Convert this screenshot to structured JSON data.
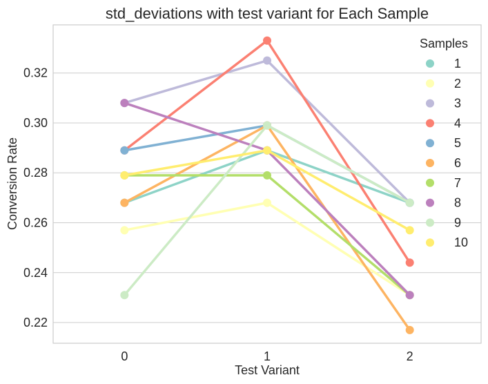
{
  "chart_data": {
    "type": "line",
    "title": "std_deviations with test variant for Each Sample",
    "xlabel": "Test Variant",
    "ylabel": "Conversion Rate",
    "x": [
      0,
      1,
      2
    ],
    "x_tick_labels": [
      "0",
      "1",
      "2"
    ],
    "y_ticks": [
      0.22,
      0.24,
      0.26,
      0.28,
      0.3,
      0.32
    ],
    "y_tick_labels": [
      "0.22",
      "0.24",
      "0.26",
      "0.28",
      "0.30",
      "0.32"
    ],
    "ylim": [
      0.2117,
      0.3393
    ],
    "xlim": [
      -0.5,
      2.5
    ],
    "grid": "horizontal",
    "legend": {
      "title": "Samples",
      "position": "top-right"
    },
    "series": [
      {
        "name": "1",
        "color": "#8dd3c7",
        "values": [
          0.268,
          0.289,
          0.268
        ]
      },
      {
        "name": "2",
        "color": "#ffffb3",
        "values": [
          0.257,
          0.268,
          0.231
        ]
      },
      {
        "name": "3",
        "color": "#bebada",
        "values": [
          0.308,
          0.325,
          0.268
        ]
      },
      {
        "name": "4",
        "color": "#fb8072",
        "values": [
          0.289,
          0.333,
          0.244
        ]
      },
      {
        "name": "5",
        "color": "#80b1d3",
        "values": [
          0.289,
          0.299,
          0.268
        ]
      },
      {
        "name": "6",
        "color": "#fdb462",
        "values": [
          0.268,
          0.299,
          0.217
        ]
      },
      {
        "name": "7",
        "color": "#b3de69",
        "values": [
          0.279,
          0.279,
          0.231
        ]
      },
      {
        "name": "8",
        "color": "#bc80bd",
        "values": [
          0.308,
          0.289,
          0.231
        ]
      },
      {
        "name": "9",
        "color": "#ccebc5",
        "values": [
          0.231,
          0.299,
          0.268
        ]
      },
      {
        "name": "10",
        "color": "#ffed6f",
        "values": [
          0.279,
          0.289,
          0.257
        ]
      }
    ]
  }
}
